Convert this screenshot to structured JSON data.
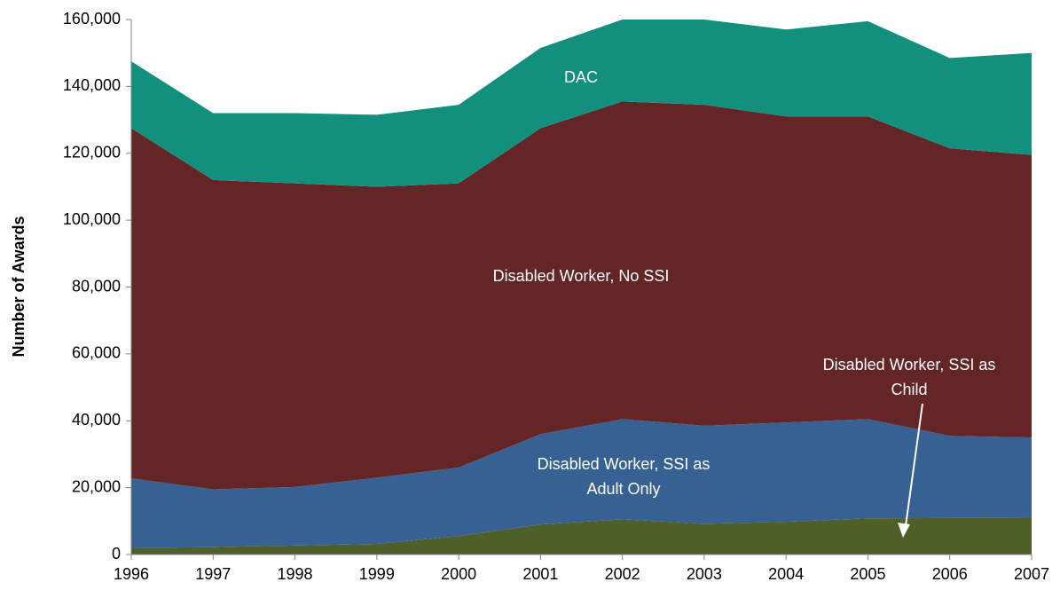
{
  "chart_data": {
    "type": "stacked-area",
    "y_label": "Number of Awards",
    "x": [
      1996,
      1997,
      1998,
      1999,
      2000,
      2001,
      2002,
      2003,
      2004,
      2005,
      2006,
      2007
    ],
    "xlim": [
      1996,
      2007
    ],
    "ylim": [
      0,
      160000
    ],
    "yticks": [
      0,
      {
        "value": 20000,
        "label": "20,000"
      },
      {
        "value": 40000,
        "label": "40,000"
      },
      {
        "value": 60000,
        "label": "60,000"
      },
      {
        "value": 80000,
        "label": "80,000"
      },
      {
        "value": 100000,
        "label": "100,000"
      },
      {
        "value": 120000,
        "label": "120,000"
      },
      {
        "value": 140000,
        "label": "140,000"
      },
      {
        "value": 160000,
        "label": "160,000"
      }
    ],
    "series": [
      {
        "name": "Disabled Worker, SSI as Child",
        "color": "#4e5f2a",
        "values": [
          2000,
          2200,
          2700,
          3200,
          5500,
          9000,
          10500,
          9200,
          9800,
          10800,
          10900,
          11000
        ]
      },
      {
        "name": "Disabled Worker, SSI as Adult Only",
        "color": "#366192",
        "values": [
          20800,
          17300,
          17500,
          19800,
          20500,
          27000,
          30000,
          29300,
          29700,
          29700,
          24600,
          24000
        ]
      },
      {
        "name": "Disabled Worker, No SSI",
        "color": "#642527",
        "values": [
          104700,
          92500,
          90800,
          87000,
          85000,
          91500,
          95000,
          96000,
          91500,
          90500,
          86000,
          84500
        ]
      },
      {
        "name": "DAC",
        "color": "#138f7e",
        "values": [
          20000,
          20000,
          21000,
          21500,
          23500,
          24000,
          24500,
          25500,
          26000,
          28500,
          27000,
          30500
        ]
      }
    ]
  }
}
